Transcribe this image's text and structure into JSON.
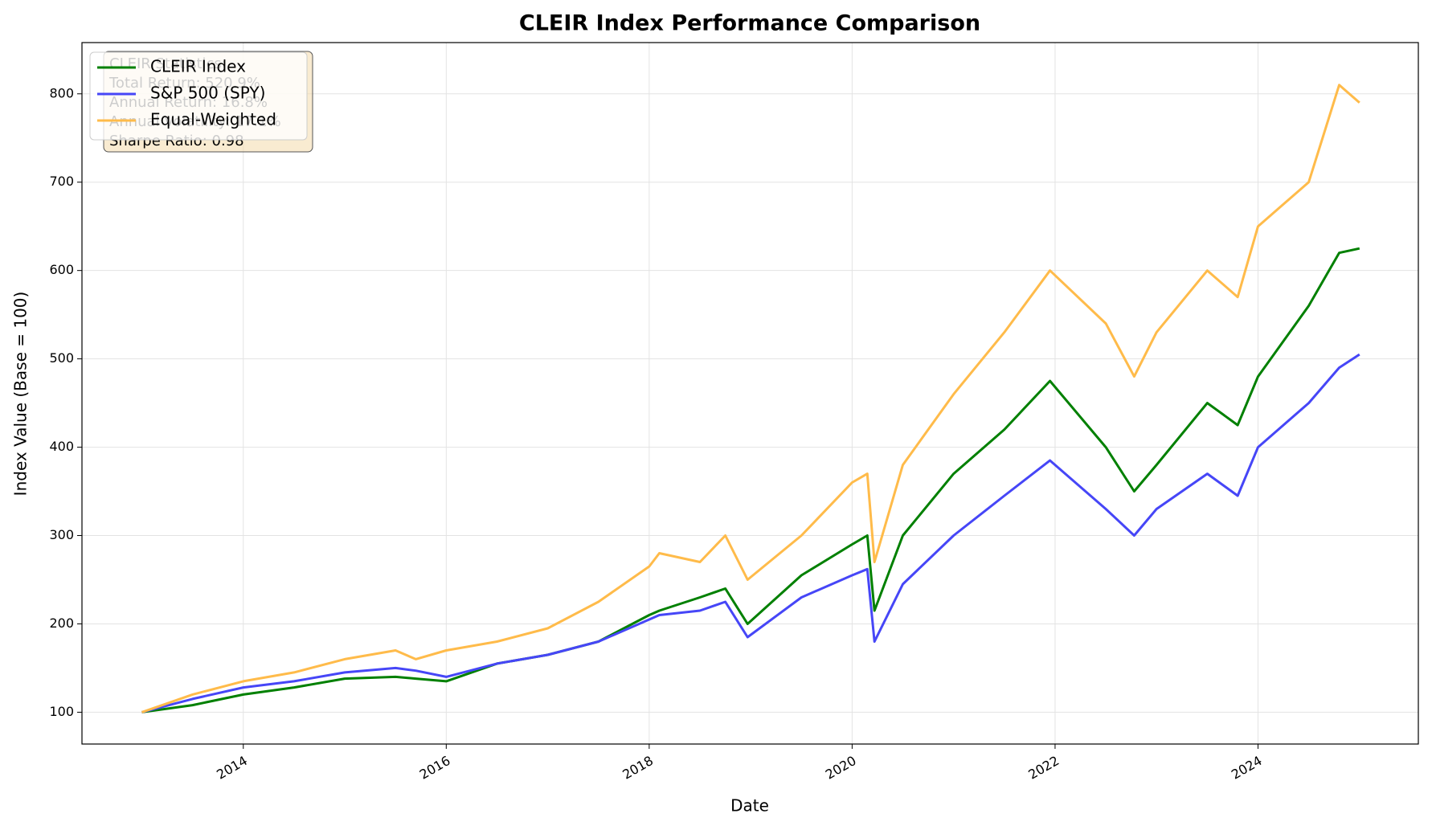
{
  "chart_data": {
    "type": "line",
    "title": "CLEIR Index Performance Comparison",
    "x_label": "Date",
    "y_label": "Index Value (Base = 100)",
    "x": [
      2013.0,
      2013.5,
      2014.0,
      2014.5,
      2015.0,
      2015.5,
      2015.7,
      2016.0,
      2016.5,
      2017.0,
      2017.5,
      2018.0,
      2018.1,
      2018.5,
      2018.75,
      2018.97,
      2019.5,
      2020.0,
      2020.15,
      2020.22,
      2020.5,
      2021.0,
      2021.5,
      2021.95,
      2022.5,
      2022.78,
      2023.0,
      2023.5,
      2023.8,
      2024.0,
      2024.5,
      2024.8,
      2025.0
    ],
    "series": [
      {
        "name": "CLEIR Index",
        "color": "#008000",
        "values": [
          100,
          108,
          120,
          128,
          138,
          140,
          138,
          135,
          155,
          165,
          180,
          210,
          215,
          230,
          240,
          200,
          255,
          290,
          300,
          215,
          300,
          370,
          420,
          475,
          400,
          350,
          380,
          450,
          425,
          480,
          560,
          620,
          625
        ]
      },
      {
        "name": "S&P 500 (SPY)",
        "color": "#4646f7",
        "values": [
          100,
          115,
          128,
          135,
          145,
          150,
          147,
          140,
          155,
          165,
          180,
          205,
          210,
          215,
          225,
          185,
          230,
          255,
          262,
          180,
          245,
          300,
          345,
          385,
          330,
          300,
          330,
          370,
          345,
          400,
          450,
          490,
          505
        ]
      },
      {
        "name": "Equal-Weighted",
        "color": "#ffbb4a",
        "values": [
          100,
          120,
          135,
          145,
          160,
          170,
          160,
          170,
          180,
          195,
          225,
          265,
          280,
          270,
          300,
          250,
          300,
          360,
          370,
          270,
          380,
          460,
          530,
          600,
          540,
          480,
          530,
          600,
          570,
          650,
          700,
          810,
          790
        ]
      }
    ],
    "annotations": [
      "CLEIR Statistics:",
      "Total Return: 520.9%",
      "Annual Return: 16.8%",
      "Annual Volatility: 17.1%",
      "Sharpe Ratio: 0.98"
    ],
    "xlim": [
      2012.41,
      2025.58
    ],
    "xticks": [
      2014,
      2016,
      2018,
      2020,
      2022,
      2024
    ],
    "ylim": [
      64,
      858
    ],
    "yticks": [
      100,
      200,
      300,
      400,
      500,
      600,
      700,
      800
    ],
    "grid": true,
    "legend": "upper left"
  }
}
